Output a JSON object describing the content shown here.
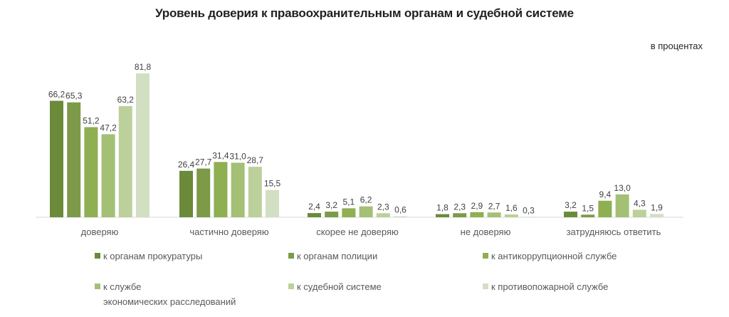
{
  "chart_data": {
    "type": "bar",
    "title": "Уровень доверия к правоохранительным органам и судебной системе",
    "units_note": "в процентах",
    "xlabel": "",
    "ylabel": "",
    "ylim": [
      0,
      85
    ],
    "grid": false,
    "legend_position": "bottom",
    "categories": [
      "доверяю",
      "частично доверяю",
      "скорее не доверяю",
      "не доверяю",
      "затрудняюсь ответить"
    ],
    "series": [
      {
        "name": "к органам прокуратуры",
        "color": "#6b8a3a",
        "values": [
          66.2,
          26.4,
          2.4,
          1.8,
          3.2
        ],
        "labels": [
          "66,2",
          "26,4",
          "2,4",
          "1,8",
          "3,2"
        ]
      },
      {
        "name": "к органам полиции",
        "color": "#7c9a48",
        "values": [
          65.3,
          27.7,
          3.2,
          2.3,
          1.5
        ],
        "labels": [
          "65,3",
          "27,7",
          "3,2",
          "2,3",
          "1,5"
        ]
      },
      {
        "name": "к антикоррупционной службе",
        "color": "#8eaf52",
        "values": [
          51.2,
          31.4,
          5.1,
          2.9,
          9.4
        ],
        "labels": [
          "51,2",
          "31,4",
          "5,1",
          "2,9",
          "9,4"
        ]
      },
      {
        "name": "к службе экономических расследований",
        "color": "#a3c075",
        "values": [
          47.2,
          31.0,
          6.2,
          2.7,
          13.0
        ],
        "labels": [
          "47,2",
          "31,0",
          "6,2",
          "2,7",
          "13,0"
        ]
      },
      {
        "name": "к судебной системе",
        "color": "#bcd09c",
        "values": [
          63.2,
          28.7,
          2.3,
          1.6,
          4.3
        ],
        "labels": [
          "63,2",
          "28,7",
          "2,3",
          "1,6",
          "4,3"
        ]
      },
      {
        "name": "к противопожарной службе",
        "color": "#d3dfc3",
        "values": [
          81.8,
          15.5,
          0.6,
          0.3,
          1.9
        ],
        "labels": [
          "81,8",
          "15,5",
          "0,6",
          "0,3",
          "1,9"
        ]
      }
    ]
  },
  "legend": [
    {
      "line1": "к органам прокуратуры",
      "line2": ""
    },
    {
      "line1": "к органам полиции",
      "line2": ""
    },
    {
      "line1": "к антикоррупционной службе",
      "line2": ""
    },
    {
      "line1": "к службе",
      "line2": "экономических расследований"
    },
    {
      "line1": "к судебной системе",
      "line2": ""
    },
    {
      "line1": "к противопожарной службе",
      "line2": ""
    }
  ]
}
